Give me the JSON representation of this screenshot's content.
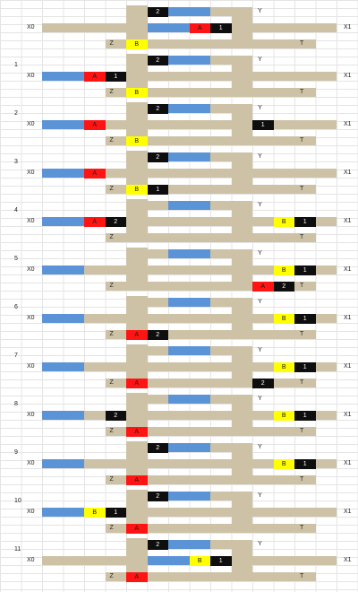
{
  "colors": {
    "track": "#cdc2a6",
    "wagon": "#5b93d7",
    "token_black": "#0e0e0e",
    "token_red": "#ff1414",
    "token_yellow": "#ffff00"
  },
  "track_labels": {
    "y": "Y",
    "x0": "X0",
    "x1": "X1",
    "z": "Z",
    "t": "T"
  },
  "panels": [
    {
      "step": "",
      "topBlue": true,
      "midBlue": "mid",
      "botBlue": false,
      "tokens": [
        {
          "lane": "top",
          "col": 7,
          "label": "2",
          "color": "black"
        },
        {
          "lane": "mid",
          "col": 9,
          "label": "A",
          "color": "red"
        },
        {
          "lane": "mid",
          "col": 10,
          "label": "1",
          "color": "black"
        },
        {
          "lane": "bot",
          "col": 6,
          "label": "B",
          "color": "yellow"
        }
      ]
    },
    {
      "step": "1",
      "topBlue": true,
      "midBlue": "left",
      "botBlue": false,
      "tokens": [
        {
          "lane": "top",
          "col": 7,
          "label": "2",
          "color": "black"
        },
        {
          "lane": "mid",
          "col": 4,
          "label": "A",
          "color": "red"
        },
        {
          "lane": "mid",
          "col": 5,
          "label": "1",
          "color": "black"
        },
        {
          "lane": "bot",
          "col": 6,
          "label": "B",
          "color": "yellow"
        }
      ]
    },
    {
      "step": "2",
      "topBlue": true,
      "midBlue": "left",
      "botBlue": false,
      "tokens": [
        {
          "lane": "top",
          "col": 7,
          "label": "2",
          "color": "black"
        },
        {
          "lane": "mid",
          "col": 4,
          "label": "A",
          "color": "red"
        },
        {
          "lane": "mid",
          "col": 12,
          "label": "1",
          "color": "black"
        },
        {
          "lane": "bot",
          "col": 6,
          "label": "B",
          "color": "yellow"
        }
      ]
    },
    {
      "step": "3",
      "topBlue": true,
      "midBlue": "left",
      "botBlue": false,
      "tokens": [
        {
          "lane": "top",
          "col": 7,
          "label": "2",
          "color": "black"
        },
        {
          "lane": "mid",
          "col": 4,
          "label": "A",
          "color": "red"
        },
        {
          "lane": "bot",
          "col": 6,
          "label": "B",
          "color": "yellow"
        },
        {
          "lane": "bot",
          "col": 7,
          "label": "1",
          "color": "black"
        }
      ]
    },
    {
      "step": "4",
      "topBlue": true,
      "midBlue": "left",
      "botBlue": false,
      "tokens": [
        {
          "lane": "mid",
          "col": 4,
          "label": "A",
          "color": "red"
        },
        {
          "lane": "mid",
          "col": 5,
          "label": "2",
          "color": "black"
        },
        {
          "lane": "mid",
          "col": 13,
          "label": "B",
          "color": "yellow"
        },
        {
          "lane": "mid",
          "col": 14,
          "label": "1",
          "color": "black"
        }
      ]
    },
    {
      "step": "5",
      "topBlue": true,
      "midBlue": "left",
      "botBlue": false,
      "tokens": [
        {
          "lane": "mid",
          "col": 13,
          "label": "B",
          "color": "yellow"
        },
        {
          "lane": "mid",
          "col": 14,
          "label": "1",
          "color": "black"
        },
        {
          "lane": "bot",
          "col": 12,
          "label": "A",
          "color": "red"
        },
        {
          "lane": "bot",
          "col": 13,
          "label": "2",
          "color": "black"
        }
      ]
    },
    {
      "step": "6",
      "topBlue": true,
      "midBlue": "left",
      "botBlue": false,
      "tokens": [
        {
          "lane": "mid",
          "col": 13,
          "label": "B",
          "color": "yellow"
        },
        {
          "lane": "mid",
          "col": 14,
          "label": "1",
          "color": "black"
        },
        {
          "lane": "bot",
          "col": 6,
          "label": "A",
          "color": "red"
        },
        {
          "lane": "bot",
          "col": 7,
          "label": "2",
          "color": "black"
        }
      ]
    },
    {
      "step": "7",
      "topBlue": true,
      "midBlue": "left",
      "botBlue": false,
      "tokens": [
        {
          "lane": "mid",
          "col": 13,
          "label": "B",
          "color": "yellow"
        },
        {
          "lane": "mid",
          "col": 14,
          "label": "1",
          "color": "black"
        },
        {
          "lane": "bot",
          "col": 6,
          "label": "A",
          "color": "red"
        },
        {
          "lane": "bot",
          "col": 12,
          "label": "2",
          "color": "black"
        }
      ]
    },
    {
      "step": "8",
      "topBlue": true,
      "midBlue": "left",
      "botBlue": false,
      "tokens": [
        {
          "lane": "mid",
          "col": 5,
          "label": "2",
          "color": "black"
        },
        {
          "lane": "mid",
          "col": 13,
          "label": "B",
          "color": "yellow"
        },
        {
          "lane": "mid",
          "col": 14,
          "label": "1",
          "color": "black"
        },
        {
          "lane": "bot",
          "col": 6,
          "label": "A",
          "color": "red"
        }
      ]
    },
    {
      "step": "9",
      "topBlue": true,
      "midBlue": "left",
      "botBlue": false,
      "tokens": [
        {
          "lane": "top",
          "col": 7,
          "label": "2",
          "color": "black"
        },
        {
          "lane": "mid",
          "col": 13,
          "label": "B",
          "color": "yellow"
        },
        {
          "lane": "mid",
          "col": 14,
          "label": "1",
          "color": "black"
        },
        {
          "lane": "bot",
          "col": 6,
          "label": "A",
          "color": "red"
        }
      ]
    },
    {
      "step": "10",
      "topBlue": true,
      "midBlue": "left",
      "botBlue": false,
      "tokens": [
        {
          "lane": "top",
          "col": 7,
          "label": "2",
          "color": "black"
        },
        {
          "lane": "mid",
          "col": 4,
          "label": "B",
          "color": "yellow"
        },
        {
          "lane": "mid",
          "col": 5,
          "label": "1",
          "color": "black"
        },
        {
          "lane": "bot",
          "col": 6,
          "label": "A",
          "color": "red"
        }
      ]
    },
    {
      "step": "11",
      "topBlue": true,
      "midBlue": "mid",
      "botBlue": false,
      "tokens": [
        {
          "lane": "top",
          "col": 7,
          "label": "2",
          "color": "black"
        },
        {
          "lane": "mid",
          "col": 9,
          "label": "B",
          "color": "yellow"
        },
        {
          "lane": "mid",
          "col": 10,
          "label": "1",
          "color": "black"
        },
        {
          "lane": "bot",
          "col": 6,
          "label": "A",
          "color": "red"
        }
      ]
    }
  ]
}
